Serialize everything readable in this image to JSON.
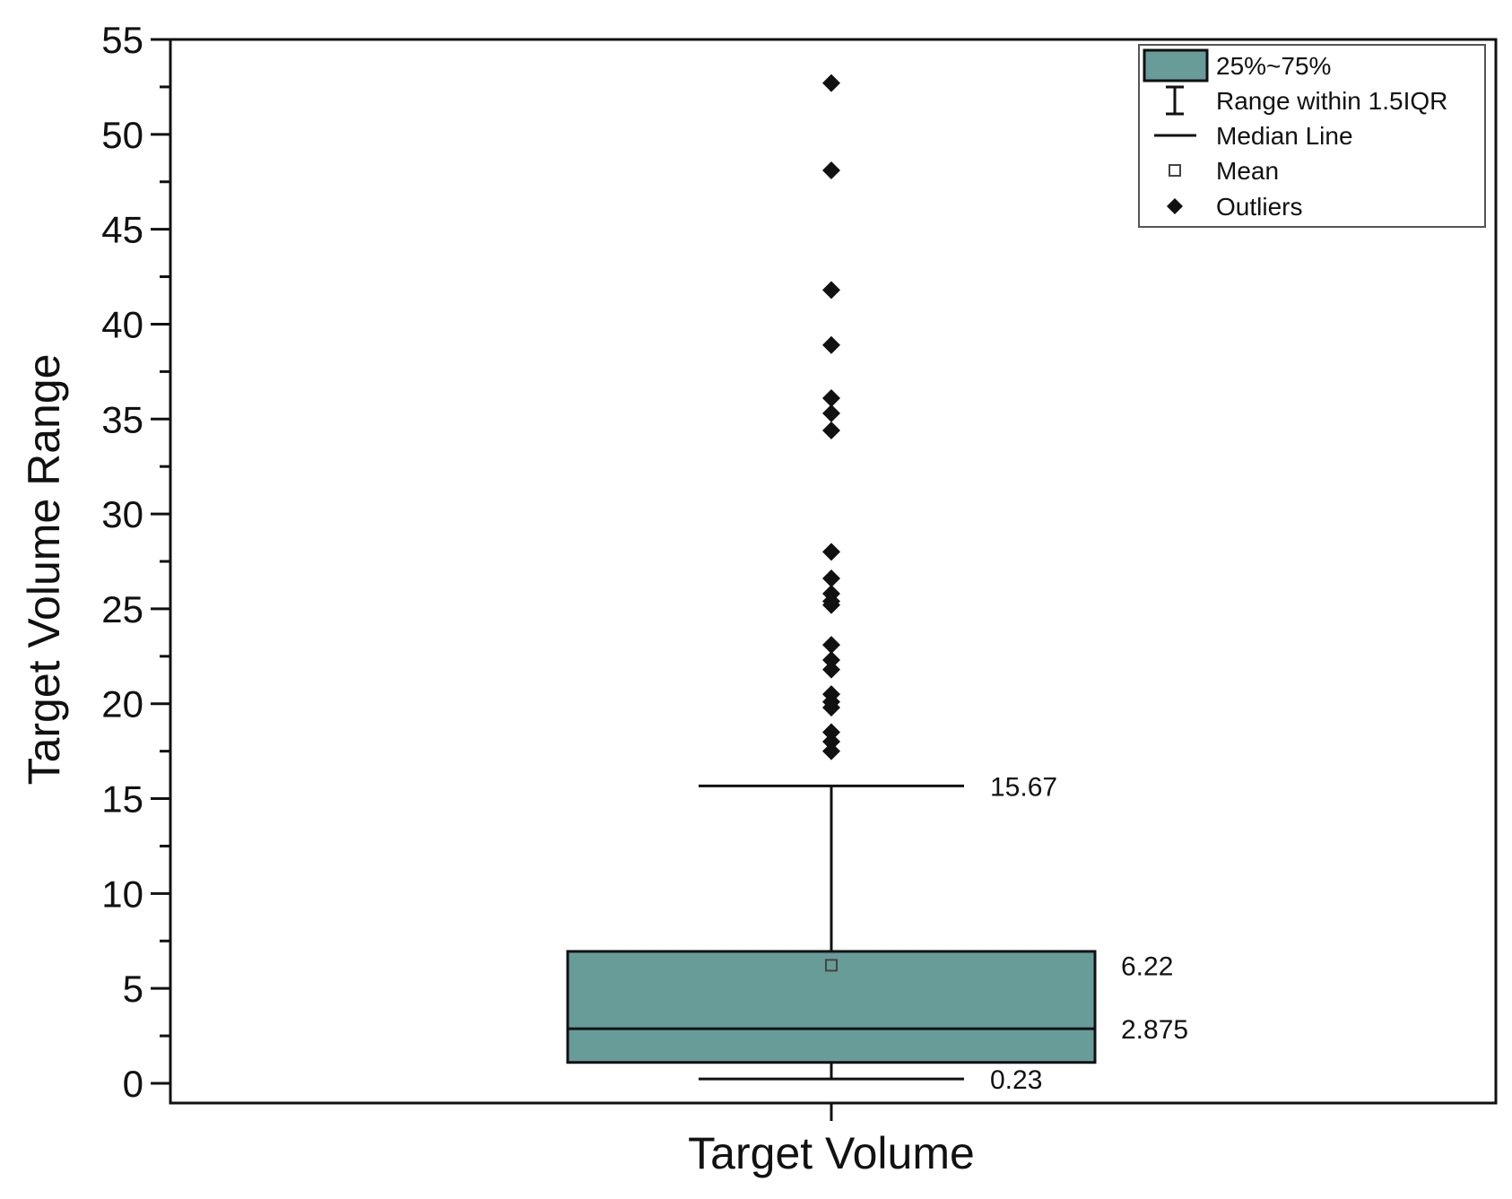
{
  "chart_data": {
    "type": "box",
    "xlabel": "Target Volume",
    "ylabel": "Target Volume Range",
    "ylim": [
      0,
      55
    ],
    "yticks": [
      0,
      5,
      10,
      15,
      20,
      25,
      30,
      35,
      40,
      45,
      50,
      55
    ],
    "categories": [
      "Target Volume"
    ],
    "box": {
      "q1": 1.1,
      "q3": 6.95,
      "median": 2.875,
      "mean": 6.22,
      "whisker_low": 0.23,
      "whisker_high": 15.67
    },
    "annotations": {
      "whisker_high": "15.67",
      "mean": "6.22",
      "median": "2.875",
      "whisker_low": "0.23"
    },
    "outliers": [
      52.7,
      48.1,
      41.8,
      38.9,
      36.1,
      35.3,
      34.4,
      28.0,
      26.6,
      25.8,
      25.4,
      25.2,
      23.1,
      22.3,
      21.8,
      20.5,
      20.1,
      19.8,
      18.5,
      18.0,
      17.5
    ],
    "legend": {
      "position": "top-right",
      "items": [
        {
          "label": "25%~75%",
          "symbol": "box"
        },
        {
          "label": "Range within 1.5IQR",
          "symbol": "whisker"
        },
        {
          "label": "Median Line",
          "symbol": "line"
        },
        {
          "label": "Mean",
          "symbol": "square"
        },
        {
          "label": "Outliers",
          "symbol": "diamond"
        }
      ]
    },
    "colors": {
      "box_fill": "#679c99",
      "stroke": "#111111"
    },
    "grid": false
  }
}
